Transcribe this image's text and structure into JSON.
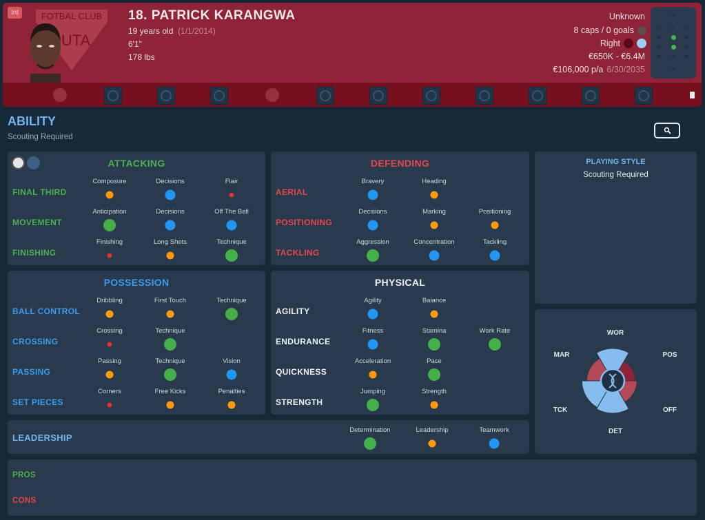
{
  "header": {
    "tag": "Int",
    "club_crest_text": "FOTBAL CLUB UTA",
    "name": "18. PATRICK KARANGWA",
    "age": "19 years old",
    "dob": "(1/1/2014)",
    "height": "6'1\"",
    "weight": "178 lbs",
    "personality": "Unknown",
    "caps": "8 caps / 0 goals",
    "foot": "Right",
    "value": "€650K - €6.4M",
    "wage": "€106,000 p/a",
    "contract_end": "6/30/2035",
    "icons": [
      "anchor-icon",
      "book-icon",
      "brain-icon",
      "hammer-sickle-icon",
      "eye-icon",
      "syringe-icon",
      "helmet-icon",
      "compass-icon",
      "hand-icon",
      "wizard-hat-icon",
      "crosshair-icon",
      "fox-icon"
    ]
  },
  "ability": {
    "title": "ABILITY",
    "subtitle": "Scouting Required"
  },
  "levels": {
    "1": "#e0312f",
    "2": "#ff9a0e",
    "3": "#2196f3",
    "4": "#45b04a"
  },
  "attacking": {
    "title": "ATTACKING",
    "color": "#4cb050",
    "rows": [
      {
        "label": "FINAL THIRD",
        "attrs": [
          {
            "name": "Composure",
            "level": 2
          },
          {
            "name": "Decisions",
            "level": 3
          },
          {
            "name": "Flair",
            "level": 1
          }
        ]
      },
      {
        "label": "MOVEMENT",
        "attrs": [
          {
            "name": "Anticipation",
            "level": 4
          },
          {
            "name": "Decisions",
            "level": 3
          },
          {
            "name": "Off The Ball",
            "level": 3
          }
        ]
      },
      {
        "label": "FINISHING",
        "attrs": [
          {
            "name": "Finishing",
            "level": 1
          },
          {
            "name": "Long Shots",
            "level": 2
          },
          {
            "name": "Technique",
            "level": 4
          }
        ]
      }
    ]
  },
  "defending": {
    "title": "DEFENDING",
    "color": "#e8464e",
    "rows": [
      {
        "label": "AERIAL",
        "attrs": [
          {
            "name": "Bravery",
            "level": 3
          },
          {
            "name": "Heading",
            "level": 2
          }
        ]
      },
      {
        "label": "POSITIONING",
        "attrs": [
          {
            "name": "Decisions",
            "level": 3
          },
          {
            "name": "Marking",
            "level": 2
          },
          {
            "name": "Positioning",
            "level": 2
          }
        ]
      },
      {
        "label": "TACKLING",
        "attrs": [
          {
            "name": "Aggression",
            "level": 4
          },
          {
            "name": "Concentration",
            "level": 3
          },
          {
            "name": "Tackling",
            "level": 3
          }
        ]
      }
    ]
  },
  "possession": {
    "title": "POSSESSION",
    "color": "#3b9cf0",
    "rows": [
      {
        "label": "BALL CONTROL",
        "attrs": [
          {
            "name": "Dribbling",
            "level": 2
          },
          {
            "name": "First Touch",
            "level": 2
          },
          {
            "name": "Technique",
            "level": 4
          }
        ]
      },
      {
        "label": "CROSSING",
        "attrs": [
          {
            "name": "Crossing",
            "level": 1
          },
          {
            "name": "Technique",
            "level": 4
          }
        ]
      },
      {
        "label": "PASSING",
        "attrs": [
          {
            "name": "Passing",
            "level": 2
          },
          {
            "name": "Technique",
            "level": 4
          },
          {
            "name": "Vision",
            "level": 3
          }
        ]
      },
      {
        "label": "SET PIECES",
        "attrs": [
          {
            "name": "Corners",
            "level": 1
          },
          {
            "name": "Free Kicks",
            "level": 2
          },
          {
            "name": "Penalties",
            "level": 2
          }
        ]
      }
    ]
  },
  "physical": {
    "title": "PHYSICAL",
    "color": "#eef2f6",
    "rows": [
      {
        "label": "AGILITY",
        "attrs": [
          {
            "name": "Agility",
            "level": 3
          },
          {
            "name": "Balance",
            "level": 2
          }
        ]
      },
      {
        "label": "ENDURANCE",
        "attrs": [
          {
            "name": "Fitness",
            "level": 3
          },
          {
            "name": "Stamina",
            "level": 4
          },
          {
            "name": "Work Rate",
            "level": 4
          }
        ]
      },
      {
        "label": "QUICKNESS",
        "attrs": [
          {
            "name": "Acceleration",
            "level": 2
          },
          {
            "name": "Pace",
            "level": 4
          }
        ]
      },
      {
        "label": "STRENGTH",
        "attrs": [
          {
            "name": "Jumping",
            "level": 4
          },
          {
            "name": "Strength",
            "level": 2
          }
        ]
      }
    ]
  },
  "leadership": {
    "label": "LEADERSHIP",
    "attrs": [
      {
        "name": "Determination",
        "level": 4
      },
      {
        "name": "Leadership",
        "level": 2
      },
      {
        "name": "Teamwork",
        "level": 3
      }
    ]
  },
  "playing_style": {
    "title": "PLAYING STYLE",
    "text": "Scouting Required"
  },
  "radar": [
    {
      "label": "WOR",
      "value": 1.0,
      "color": "#86bdee"
    },
    {
      "label": "POS",
      "value": 0.7,
      "color": "#8f2335"
    },
    {
      "label": "OFF",
      "value": 0.75,
      "color": "#b44a58"
    },
    {
      "label": "DET",
      "value": 1.0,
      "color": "#86bdee"
    },
    {
      "label": "TCK",
      "value": 0.95,
      "color": "#86bdee"
    },
    {
      "label": "MAR",
      "value": 0.8,
      "color": "#b44a58"
    }
  ],
  "pros": {
    "label": "PROS"
  },
  "cons": {
    "label": "CONS"
  }
}
